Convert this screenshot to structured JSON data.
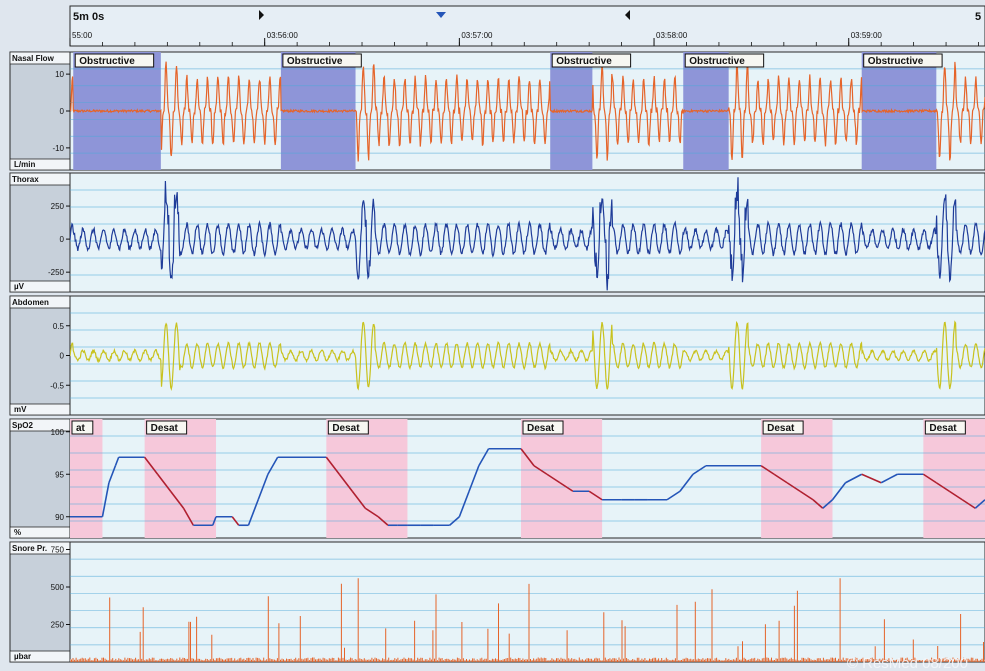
{
  "timeline": {
    "window_label": "5m 0s",
    "right_edge_label": "5",
    "ticks": [
      {
        "label": "55:00",
        "t": 0
      },
      {
        "label": "03:56:00",
        "t": 60
      },
      {
        "label": "03:57:00",
        "t": 120
      },
      {
        "label": "03:58:00",
        "t": 180
      },
      {
        "label": "03:59:00",
        "t": 240
      }
    ],
    "t_range": [
      0,
      282
    ]
  },
  "chart_data": [
    {
      "type": "line",
      "name_label": "Nasal Flow",
      "unit_label": "L/min",
      "color": "#e5642a",
      "ylim": [
        -16,
        16
      ],
      "yticks": [
        "10",
        "0",
        "-10"
      ],
      "ytick_values": [
        10,
        0,
        -10
      ],
      "events": [
        {
          "label": "Obstructive",
          "start": 1,
          "end": 28,
          "color": "#8e95d8"
        },
        {
          "label": "Obstructive",
          "start": 65,
          "end": 88,
          "color": "#8e95d8"
        },
        {
          "label": "Obstructive",
          "start": 148,
          "end": 161,
          "color": "#8e95d8"
        },
        {
          "label": "Obstructive",
          "start": 189,
          "end": 203,
          "color": "#8e95d8"
        },
        {
          "label": "Obstructive",
          "start": 244,
          "end": 267,
          "color": "#8e95d8"
        }
      ],
      "grid": true
    },
    {
      "type": "line",
      "name_label": "Thorax",
      "unit_label": "µV",
      "color": "#1f3c99",
      "ylim": [
        -400,
        500
      ],
      "yticks": [
        "250",
        "0",
        "-250"
      ],
      "ytick_values": [
        250,
        0,
        -250
      ],
      "grid": true
    },
    {
      "type": "line",
      "name_label": "Abdomen",
      "unit_label": "mV",
      "color": "#c8c21e",
      "ylim": [
        -1,
        1
      ],
      "yticks": [
        "0.5",
        "0",
        "-0.5"
      ],
      "ytick_values": [
        0.5,
        0,
        -0.5
      ],
      "grid": true
    },
    {
      "type": "line",
      "name_label": "SpO2",
      "unit_label": "%",
      "color": "#2455b8",
      "desat_color": "#b02030",
      "ylim": [
        87.5,
        101.5
      ],
      "yticks": [
        "100",
        "95",
        "90"
      ],
      "ytick_values": [
        100,
        95,
        90
      ],
      "events": [
        {
          "label": "at",
          "start": 0,
          "end": 10,
          "color": "#f6c8da"
        },
        {
          "label": "Desat",
          "start": 23,
          "end": 45,
          "color": "#f6c8da"
        },
        {
          "label": "Desat",
          "start": 79,
          "end": 104,
          "color": "#f6c8da"
        },
        {
          "label": "Desat",
          "start": 139,
          "end": 164,
          "color": "#f6c8da"
        },
        {
          "label": "Desat",
          "start": 213,
          "end": 235,
          "color": "#f6c8da"
        },
        {
          "label": "Desat",
          "start": 263,
          "end": 284,
          "color": "#f6c8da"
        }
      ],
      "points": [
        [
          0,
          90
        ],
        [
          10,
          90
        ],
        [
          12,
          94
        ],
        [
          14,
          96
        ],
        [
          15,
          97
        ],
        [
          23,
          97
        ],
        [
          27,
          95
        ],
        [
          31,
          93
        ],
        [
          35,
          91
        ],
        [
          38,
          89
        ],
        [
          44,
          89
        ],
        [
          45,
          90
        ],
        [
          50,
          90
        ],
        [
          52,
          89
        ],
        [
          55,
          89
        ],
        [
          58,
          92
        ],
        [
          61,
          95
        ],
        [
          64,
          97
        ],
        [
          79,
          97
        ],
        [
          83,
          95
        ],
        [
          87,
          93
        ],
        [
          91,
          91
        ],
        [
          95,
          90
        ],
        [
          98,
          89
        ],
        [
          101,
          89
        ],
        [
          104,
          89
        ],
        [
          108,
          89
        ],
        [
          112,
          89
        ],
        [
          117,
          89
        ],
        [
          120,
          90
        ],
        [
          123,
          93
        ],
        [
          126,
          96
        ],
        [
          129,
          98
        ],
        [
          139,
          98
        ],
        [
          143,
          96
        ],
        [
          147,
          95
        ],
        [
          151,
          94
        ],
        [
          155,
          93
        ],
        [
          160,
          93
        ],
        [
          164,
          92
        ],
        [
          170,
          92
        ],
        [
          174,
          92
        ],
        [
          178,
          92
        ],
        [
          184,
          92
        ],
        [
          188,
          93
        ],
        [
          192,
          95
        ],
        [
          196,
          96
        ],
        [
          213,
          96
        ],
        [
          217,
          95
        ],
        [
          221,
          94
        ],
        [
          225,
          93
        ],
        [
          229,
          92
        ],
        [
          232,
          91
        ],
        [
          235,
          92
        ],
        [
          239,
          94
        ],
        [
          244,
          95
        ],
        [
          250,
          94
        ],
        [
          255,
          95
        ],
        [
          263,
          95
        ],
        [
          267,
          94
        ],
        [
          271,
          93
        ],
        [
          275,
          92
        ],
        [
          279,
          91
        ],
        [
          282,
          92
        ],
        [
          285,
          92
        ]
      ],
      "grid": true
    },
    {
      "type": "line",
      "name_label": "Snore Pr.",
      "unit_label": "µbar",
      "color": "#e5642a",
      "ylim": [
        0,
        800
      ],
      "yticks": [
        "750",
        "500",
        "250"
      ],
      "ytick_values": [
        750,
        500,
        250
      ],
      "grid": true
    }
  ],
  "watermark": "© ResMed 08/200",
  "colors": {
    "plot_bg": "#e7f3f8",
    "grid": "#4ea8d8",
    "frame": "#2a2a2a",
    "label_bg": "#c7d0da"
  }
}
